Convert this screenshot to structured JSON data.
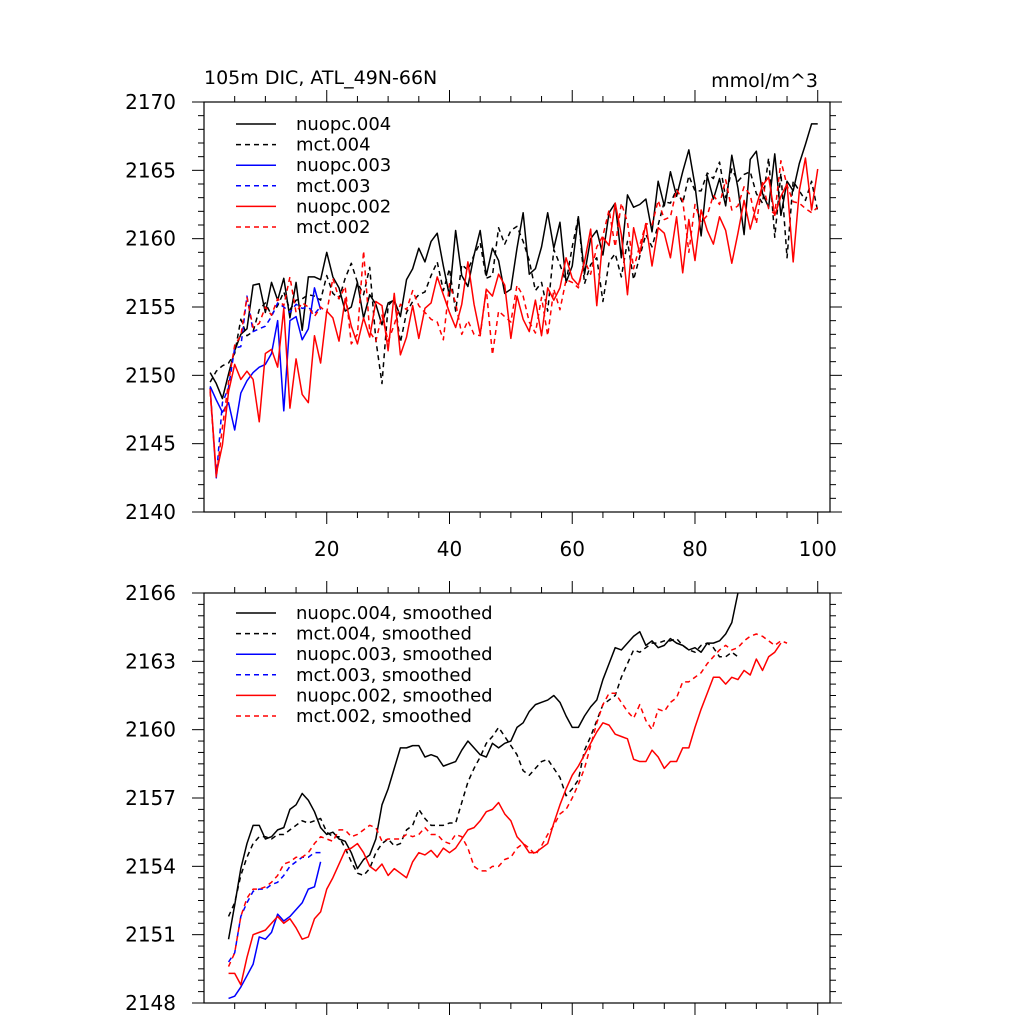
{
  "figure": {
    "title_left": "105m DIC, ATL_49N-66N",
    "title_right": "mmol/m^3"
  },
  "chart_data": [
    {
      "type": "line",
      "name": "annual",
      "title": "105m DIC, ATL_49N-66N",
      "units": "mmol/m^3",
      "xlim": [
        0,
        102
      ],
      "ylim": [
        2140,
        2170
      ],
      "xticks": [
        20,
        40,
        60,
        80,
        100
      ],
      "xtick_labels": [
        "20",
        "40",
        "60",
        "80",
        "100"
      ],
      "yticks": [
        2140,
        2145,
        2150,
        2155,
        2160,
        2165,
        2170
      ],
      "ytick_labels": [
        "2140",
        "2145",
        "2150",
        "2155",
        "2160",
        "2165",
        "2170"
      ],
      "legend": {
        "position": "top-left"
      },
      "series": [
        {
          "name": "nuopc.004",
          "color": "#000000",
          "dash": "solid",
          "x_start": 1,
          "values": [
            2150.2,
            2149.4,
            2148.3,
            2150.1,
            2151.8,
            2153.0,
            2153.4,
            2156.6,
            2156.7,
            2154.6,
            2156.8,
            2155.5,
            2157.1,
            2154.2,
            2156.8,
            2153.3,
            2157.2,
            2157.2,
            2157.0,
            2159.0,
            2157.2,
            2156.4,
            2154.7,
            2155.0,
            2156.8,
            2154.2,
            2155.9,
            2155.2,
            2153.7,
            2155.3,
            2155.5,
            2154.3,
            2157.0,
            2157.8,
            2159.3,
            2158.3,
            2159.8,
            2160.4,
            2158.0,
            2155.8,
            2160.6,
            2157.3,
            2156.5,
            2158.8,
            2160.6,
            2157.3,
            2159.3,
            2158.4,
            2156.0,
            2156.3,
            2159.3,
            2161.9,
            2157.4,
            2157.8,
            2159.4,
            2161.9,
            2159.3,
            2161.2,
            2156.8,
            2158.0,
            2161.6,
            2157.4,
            2160.0,
            2160.6,
            2158.8,
            2161.9,
            2162.6,
            2158.6,
            2163.2,
            2162.3,
            2162.5,
            2162.9,
            2160.5,
            2164.2,
            2162.4,
            2164.9,
            2163.1,
            2164.9,
            2166.5,
            2163.9,
            2160.2,
            2164.6,
            2162.9,
            2164.4,
            2162.4,
            2166.1,
            2163.7,
            2160.3,
            2165.8,
            2166.4,
            2163.3,
            2162.3,
            2166.2,
            2161.7,
            2164.2,
            2163.5,
            2165.5,
            2166.9,
            2168.4,
            2168.4
          ]
        },
        {
          "name": "mct.004",
          "color": "#000000",
          "dash": "dash",
          "x_start": 1,
          "values": [
            2149.5,
            2150.3,
            2150.7,
            2150.9,
            2151.6,
            2154.1,
            2152.9,
            2153.2,
            2154.8,
            2155.3,
            2154.4,
            2155.1,
            2156.1,
            2154.8,
            2155.5,
            2155.6,
            2155.9,
            2155.8,
            2155.5,
            2157.3,
            2156.0,
            2155.6,
            2157.1,
            2158.2,
            2156.8,
            2155.9,
            2157.9,
            2152.6,
            2149.4,
            2155.1,
            2155.6,
            2152.4,
            2154.6,
            2155.4,
            2155.9,
            2156.1,
            2157.3,
            2158.3,
            2156.2,
            2157.8,
            2154.7,
            2158.1,
            2157.7,
            2158.8,
            2159.7,
            2157.1,
            2157.3,
            2160.8,
            2159.6,
            2160.6,
            2160.9,
            2159.8,
            2158.4,
            2156.2,
            2156.8,
            2154.7,
            2159.2,
            2158.1,
            2156.8,
            2159.4,
            2161.6,
            2156.7,
            2158.1,
            2158.6,
            2155.4,
            2158.3,
            2158.9,
            2157.2,
            2159.8,
            2157.0,
            2158.7,
            2160.3,
            2159.4,
            2161.0,
            2162.7,
            2162.6,
            2163.6,
            2162.6,
            2164.6,
            2163.5,
            2163.5,
            2164.8,
            2164.4,
            2165.6,
            2163.0,
            2165.1,
            2164.2,
            2164.7,
            2164.9,
            2163.3,
            2162.6,
            2165.9,
            2160.1,
            2164.8,
            2158.6,
            2164.2,
            2163.5,
            2162.8,
            2164.2,
            2162.0
          ]
        },
        {
          "name": "nuopc.003",
          "color": "#0000ff",
          "dash": "solid",
          "x_start": 1,
          "values": [
            2149.2,
            2148.2,
            2147.3,
            2148.0,
            2146.0,
            2148.7,
            2149.6,
            2150.2,
            2150.6,
            2150.8,
            2151.6,
            2154.0,
            2147.4,
            2154.0,
            2154.3,
            2152.6,
            2153.4,
            2156.4,
            2154.8
          ]
        },
        {
          "name": "mct.003",
          "color": "#0000ff",
          "dash": "dash",
          "x_start": 1,
          "values": [
            2149.1,
            2142.5,
            2148.0,
            2149.1,
            2152.0,
            2152.1,
            2155.8,
            2153.2,
            2153.4,
            2153.6,
            2154.3,
            2155.3,
            2155.0,
            2154.6,
            2155.2,
            2154.9,
            2155.0,
            2154.5,
            2155.0
          ]
        },
        {
          "name": "nuopc.002",
          "color": "#ff0000",
          "dash": "solid",
          "x_start": 1,
          "values": [
            2149.0,
            2142.8,
            2144.9,
            2148.8,
            2150.8,
            2149.7,
            2150.3,
            2149.7,
            2146.6,
            2151.6,
            2151.9,
            2150.6,
            2154.9,
            2147.6,
            2151.2,
            2148.6,
            2148.0,
            2152.9,
            2150.9,
            2154.7,
            2154.2,
            2152.5,
            2155.6,
            2153.6,
            2152.3,
            2154.2,
            2152.8,
            2155.4,
            2155.1,
            2151.8,
            2156.0,
            2151.5,
            2152.8,
            2155.1,
            2152.7,
            2154.9,
            2155.3,
            2157.2,
            2155.9,
            2154.6,
            2153.5,
            2155.2,
            2158.3,
            2155.2,
            2153.0,
            2156.3,
            2155.8,
            2157.4,
            2156.6,
            2152.7,
            2155.8,
            2154.1,
            2153.2,
            2155.5,
            2152.9,
            2156.4,
            2155.5,
            2156.4,
            2158.6,
            2157.1,
            2156.6,
            2158.3,
            2160.7,
            2155.1,
            2160.1,
            2159.5,
            2162.6,
            2160.3,
            2155.9,
            2160.8,
            2158.9,
            2161.1,
            2158.0,
            2160.8,
            2160.4,
            2158.6,
            2161.6,
            2157.5,
            2161.4,
            2158.4,
            2162.1,
            2160.6,
            2159.6,
            2161.6,
            2160.6,
            2158.2,
            2160.4,
            2162.8,
            2160.7,
            2162.4,
            2163.9,
            2164.5,
            2161.7,
            2163.1,
            2164.0,
            2158.3,
            2163.5,
            2165.9,
            2162.1,
            2165.1
          ]
        },
        {
          "name": "mct.002",
          "color": "#ff0000",
          "dash": "dash",
          "x_start": 1,
          "values": [
            2148.8,
            2142.5,
            2146.2,
            2149.5,
            2152.2,
            2152.9,
            2155.7,
            2153.5,
            2153.8,
            2155.0,
            2154.4,
            2155.6,
            2155.1,
            2157.2,
            2154.6,
            2155.3,
            2155.0,
            2154.3,
            2155.0,
            2154.6,
            2157.1,
            2155.6,
            2156.5,
            2152.3,
            2153.0,
            2159.1,
            2153.2,
            2152.5,
            2154.4,
            2152.5,
            2153.7,
            2155.2,
            2154.8,
            2156.2,
            2155.1,
            2154.6,
            2154.1,
            2153.9,
            2152.6,
            2156.7,
            2155.3,
            2153.0,
            2154.0,
            2153.0,
            2152.9,
            2156.3,
            2151.5,
            2154.7,
            2154.3,
            2153.9,
            2156.6,
            2155.8,
            2153.9,
            2153.1,
            2155.7,
            2152.9,
            2156.3,
            2154.8,
            2157.0,
            2156.8,
            2156.4,
            2158.4,
            2157.4,
            2159.4,
            2160.2,
            2162.1,
            2159.4,
            2162.6,
            2161.2,
            2157.8,
            2159.5,
            2161.1,
            2161.0,
            2162.8,
            2161.4,
            2161.6,
            2163.6,
            2162.8,
            2159.0,
            2162.5,
            2161.2,
            2161.7,
            2163.2,
            2162.5,
            2164.3,
            2162.1,
            2162.4,
            2163.8,
            2163.2,
            2161.1,
            2164.1,
            2162.2,
            2161.8,
            2165.7,
            2163.9,
            2162.7,
            2162.6,
            2162.2,
            2161.9,
            2162.3
          ]
        }
      ]
    },
    {
      "type": "line",
      "name": "smoothed",
      "xlim": [
        0,
        102
      ],
      "ylim": [
        2148,
        2166
      ],
      "xticks": [
        20,
        40,
        60,
        80,
        100
      ],
      "yticks": [
        2148,
        2151,
        2154,
        2157,
        2160,
        2163,
        2166
      ],
      "ytick_labels": [
        "2148",
        "2151",
        "2154",
        "2157",
        "2160",
        "2163",
        "2166"
      ],
      "legend": {
        "position": "top-left"
      },
      "series": [
        {
          "name": "nuopc.004, smoothed",
          "color": "#000000",
          "dash": "solid",
          "x_start": 4,
          "values": [
            2150.8,
            2152.3,
            2153.9,
            2155.0,
            2155.8,
            2155.8,
            2155.2,
            2155.3,
            2155.6,
            2155.7,
            2156.5,
            2156.7,
            2157.2,
            2156.9,
            2156.4,
            2155.7,
            2155.4,
            2155.5,
            2155.2,
            2155.1,
            2154.6,
            2153.9,
            2154.3,
            2154.5,
            2155.2,
            2156.7,
            2157.4,
            2158.3,
            2159.2,
            2159.2,
            2159.3,
            2159.3,
            2158.8,
            2158.9,
            2158.8,
            2158.4,
            2158.5,
            2158.6,
            2159.1,
            2159.5,
            2159.2,
            2158.9,
            2158.8,
            2159.4,
            2159.2,
            2159.4,
            2159.5,
            2160.1,
            2160.3,
            2160.8,
            2161.1,
            2161.2,
            2161.3,
            2161.5,
            2161.2,
            2160.6,
            2160.1,
            2160.1,
            2160.6,
            2161.0,
            2161.3,
            2162.2,
            2162.9,
            2163.6,
            2163.5,
            2163.8,
            2164.1,
            2164.3,
            2163.7,
            2163.9,
            2163.6,
            2163.7,
            2164.0,
            2163.8,
            2163.7,
            2163.5,
            2163.6,
            2163.4,
            2163.8,
            2163.8,
            2163.9,
            2164.2,
            2164.7,
            2166.0
          ]
        },
        {
          "name": "mct.004, smoothed",
          "color": "#000000",
          "dash": "dash",
          "x_start": 4,
          "values": [
            2151.8,
            2152.4,
            2153.6,
            2154.4,
            2155.0,
            2155.3,
            2155.3,
            2155.2,
            2155.4,
            2155.4,
            2155.6,
            2155.8,
            2156.0,
            2155.9,
            2156.0,
            2156.1,
            2155.5,
            2155.3,
            2155.3,
            2154.8,
            2154.2,
            2153.7,
            2153.6,
            2153.9,
            2154.6,
            2155.0,
            2155.2,
            2154.9,
            2155.0,
            2155.6,
            2155.8,
            2156.5,
            2156.1,
            2155.8,
            2155.8,
            2155.8,
            2155.9,
            2155.9,
            2156.8,
            2157.7,
            2158.3,
            2158.8,
            2159.4,
            2159.7,
            2160.1,
            2159.7,
            2159.3,
            2158.9,
            2158.2,
            2158.0,
            2158.3,
            2158.6,
            2158.7,
            2158.3,
            2157.9,
            2157.1,
            2157.4,
            2157.8,
            2159.1,
            2159.7,
            2160.4,
            2161.1,
            2161.3,
            2161.5,
            2162.3,
            2162.9,
            2163.5,
            2163.4,
            2163.6,
            2163.8,
            2163.8,
            2163.9,
            2163.9,
            2164.0,
            2163.7,
            2163.5,
            2163.4,
            2163.7,
            2163.8,
            2163.6,
            2163.2,
            2163.2,
            2163.4,
            2163.2
          ]
        },
        {
          "name": "nuopc.003, smoothed",
          "color": "#0000ff",
          "dash": "solid",
          "x_start": 4,
          "values": [
            2148.2,
            2148.3,
            2148.7,
            2149.2,
            2149.7,
            2150.9,
            2150.8,
            2151.1,
            2151.9,
            2151.6,
            2151.8,
            2152.1,
            2152.4,
            2153.0,
            2153.1,
            2154.2
          ]
        },
        {
          "name": "mct.003, smoothed",
          "color": "#0000ff",
          "dash": "dash",
          "x_start": 4,
          "values": [
            2149.8,
            2150.2,
            2151.8,
            2152.4,
            2152.9,
            2153.0,
            2153.0,
            2153.2,
            2153.3,
            2153.6,
            2154.0,
            2154.2,
            2154.4,
            2154.4,
            2154.6,
            2154.6
          ]
        },
        {
          "name": "nuopc.002, smoothed",
          "color": "#ff0000",
          "dash": "solid",
          "x_start": 4,
          "values": [
            2149.3,
            2149.3,
            2148.8,
            2150.0,
            2151.0,
            2151.1,
            2151.2,
            2151.5,
            2151.8,
            2151.5,
            2151.7,
            2151.3,
            2150.8,
            2150.9,
            2151.7,
            2152.0,
            2153.0,
            2153.5,
            2154.1,
            2154.7,
            2154.8,
            2155.0,
            2154.6,
            2154.0,
            2153.8,
            2154.1,
            2153.6,
            2153.9,
            2153.7,
            2153.5,
            2154.2,
            2154.6,
            2154.5,
            2154.7,
            2154.4,
            2154.8,
            2154.6,
            2154.8,
            2155.2,
            2155.6,
            2155.7,
            2156.0,
            2156.4,
            2156.5,
            2156.8,
            2156.3,
            2156.0,
            2155.3,
            2155.0,
            2154.6,
            2154.6,
            2154.8,
            2155.0,
            2155.9,
            2156.7,
            2157.4,
            2158.0,
            2158.4,
            2158.9,
            2159.4,
            2159.9,
            2160.3,
            2160.2,
            2159.8,
            2159.7,
            2159.6,
            2158.7,
            2158.6,
            2158.6,
            2159.1,
            2158.8,
            2158.3,
            2158.6,
            2158.6,
            2159.2,
            2159.2,
            2160.1,
            2160.9,
            2161.6,
            2162.3,
            2162.3,
            2162.0,
            2162.3,
            2162.2,
            2162.6,
            2162.4,
            2163.1,
            2162.6,
            2163.2,
            2163.4,
            2163.8
          ]
        },
        {
          "name": "mct.002, smoothed",
          "color": "#ff0000",
          "dash": "dash",
          "x_start": 4,
          "values": [
            2149.6,
            2150.2,
            2151.8,
            2152.6,
            2153.0,
            2153.0,
            2153.1,
            2153.3,
            2153.6,
            2154.1,
            2154.2,
            2154.4,
            2154.4,
            2154.6,
            2155.0,
            2155.3,
            2155.2,
            2155.1,
            2155.6,
            2155.6,
            2155.3,
            2155.4,
            2155.6,
            2155.8,
            2155.7,
            2155.1,
            2155.2,
            2155.2,
            2155.2,
            2155.4,
            2155.3,
            2155.4,
            2155.7,
            2155.4,
            2155.4,
            2155.1,
            2155.0,
            2155.4,
            2155.3,
            2154.8,
            2154.0,
            2153.8,
            2153.8,
            2154.0,
            2154.0,
            2154.3,
            2154.4,
            2154.8,
            2155.0,
            2154.8,
            2154.5,
            2154.9,
            2155.4,
            2155.8,
            2156.3,
            2156.5,
            2157.0,
            2157.6,
            2158.3,
            2159.3,
            2160.3,
            2161.1,
            2161.6,
            2161.6,
            2161.2,
            2160.8,
            2160.5,
            2161.1,
            2160.4,
            2160.0,
            2160.9,
            2160.8,
            2161.2,
            2161.4,
            2162.1,
            2162.1,
            2162.3,
            2162.5,
            2162.9,
            2163.2,
            2163.5,
            2163.7,
            2163.5,
            2163.6,
            2163.9,
            2164.1,
            2164.2,
            2164.1,
            2163.9,
            2163.7,
            2163.9,
            2163.8
          ]
        }
      ]
    }
  ]
}
